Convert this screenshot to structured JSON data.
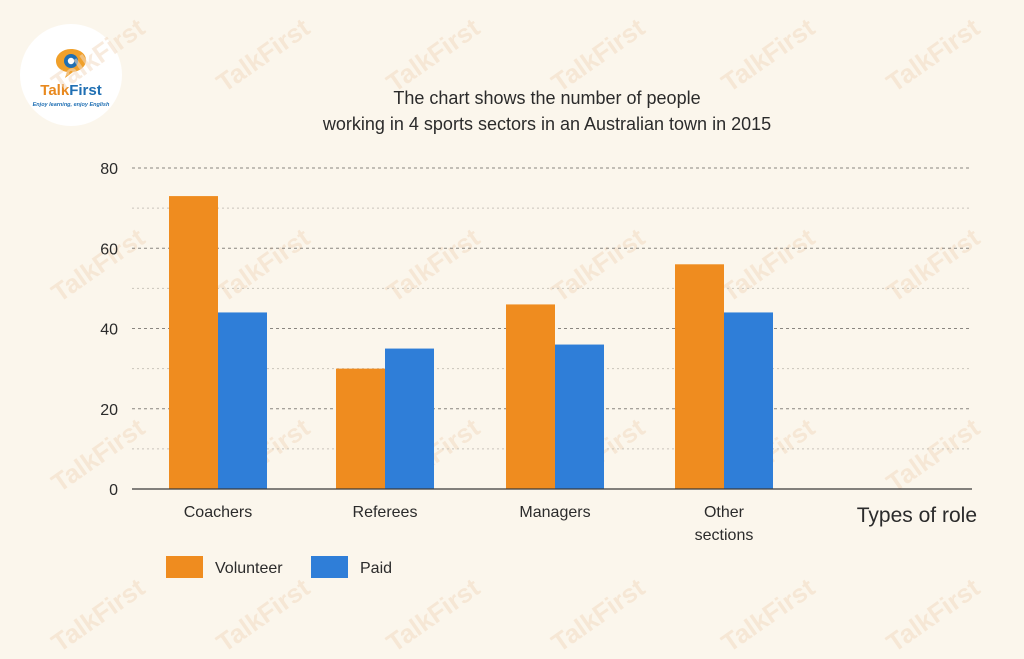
{
  "brand": {
    "name_part1": "Talk",
    "name_part2": "First",
    "tagline": "Enjoy learning, enjoy English",
    "watermark_text": "TalkFirst",
    "orange": "#e8891f",
    "blue": "#1f6fb3"
  },
  "chart_data": {
    "type": "bar",
    "title_lines": [
      "The chart shows the number of people",
      "working in 4 sports sectors in an Australian town in 2015"
    ],
    "categories": [
      [
        "Coachers"
      ],
      [
        "Referees"
      ],
      [
        "Managers"
      ],
      [
        "Other",
        "sections"
      ]
    ],
    "series": [
      {
        "name": "Volunteer",
        "color": "#ef8c1f",
        "values": [
          73,
          30,
          46,
          56
        ]
      },
      {
        "name": "Paid",
        "color": "#2f7ed8",
        "values": [
          44,
          35,
          36,
          44
        ]
      }
    ],
    "xlabel": "Types of role",
    "ylabel": "",
    "ylim": [
      0,
      80
    ],
    "yticks": [
      0,
      20,
      40,
      60,
      80
    ],
    "grid": true,
    "legend_position": "bottom-left"
  }
}
